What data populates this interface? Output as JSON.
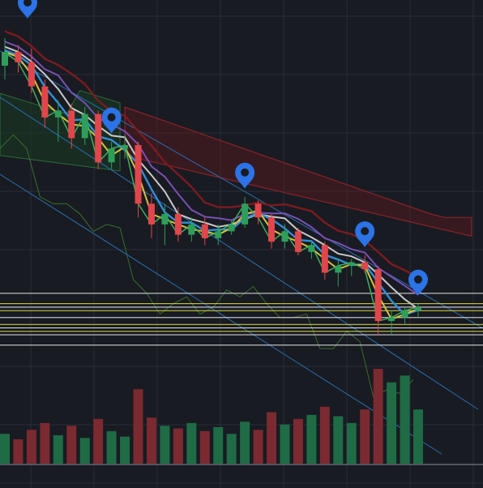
{
  "colors": {
    "background": "#181b22",
    "grid": "#2a2e38",
    "up": "#2e9e5b",
    "down": "#e0464b",
    "volume_up": "#1f6b45",
    "volume_down": "#7a2a30",
    "cloud_bear": "#5a1a1e",
    "cloud_bull": "#1a3a22",
    "ma_purple": "#7a4fb3",
    "ma_white": "#c8c8c8",
    "ma_yellow": "#d9c23a",
    "ma_blue": "#2f8fd8",
    "ma_green": "#3fae5a",
    "ma_darkred": "#7e1a1f",
    "channel": "#2a6fb0",
    "level_white": "#e6e6e6",
    "level_yellow": "#d8d840",
    "marker": "#2b73e6"
  },
  "markers": [
    {
      "name": "location-pin-icon",
      "bar": 0
    },
    {
      "name": "location-pin-icon",
      "bar": 1
    },
    {
      "name": "location-pin-icon",
      "bar": 2
    },
    {
      "name": "location-pin-icon",
      "bar": 3
    },
    {
      "name": "location-pin-icon",
      "bar": 4
    }
  ],
  "chart_data": {
    "type": "candlestick",
    "grid": true,
    "legend": "none",
    "candles": [
      {
        "o": 70,
        "h": 78,
        "l": 66,
        "c": 74
      },
      {
        "o": 74,
        "h": 76,
        "l": 68,
        "c": 71
      },
      {
        "o": 71,
        "h": 75,
        "l": 62,
        "c": 64
      },
      {
        "o": 64,
        "h": 66,
        "l": 52,
        "c": 55
      },
      {
        "o": 55,
        "h": 60,
        "l": 48,
        "c": 57
      },
      {
        "o": 57,
        "h": 59,
        "l": 46,
        "c": 49
      },
      {
        "o": 49,
        "h": 58,
        "l": 47,
        "c": 56
      },
      {
        "o": 56,
        "h": 57,
        "l": 40,
        "c": 42
      },
      {
        "o": 42,
        "h": 48,
        "l": 40,
        "c": 46
      },
      {
        "o": 46,
        "h": 50,
        "l": 43,
        "c": 47
      },
      {
        "o": 47,
        "h": 48,
        "l": 26,
        "c": 30
      },
      {
        "o": 30,
        "h": 33,
        "l": 20,
        "c": 24
      },
      {
        "o": 24,
        "h": 30,
        "l": 18,
        "c": 27
      },
      {
        "o": 27,
        "h": 29,
        "l": 19,
        "c": 21
      },
      {
        "o": 21,
        "h": 26,
        "l": 19,
        "c": 24
      },
      {
        "o": 24,
        "h": 26,
        "l": 18,
        "c": 20
      },
      {
        "o": 20,
        "h": 24,
        "l": 18,
        "c": 22
      },
      {
        "o": 22,
        "h": 25,
        "l": 21,
        "c": 24
      },
      {
        "o": 24,
        "h": 32,
        "l": 23,
        "c": 30
      },
      {
        "o": 30,
        "h": 31,
        "l": 24,
        "c": 26
      },
      {
        "o": 26,
        "h": 27,
        "l": 17,
        "c": 19
      },
      {
        "o": 19,
        "h": 24,
        "l": 17,
        "c": 22
      },
      {
        "o": 22,
        "h": 23,
        "l": 15,
        "c": 16
      },
      {
        "o": 16,
        "h": 19,
        "l": 14,
        "c": 18
      },
      {
        "o": 18,
        "h": 19,
        "l": 8,
        "c": 10
      },
      {
        "o": 10,
        "h": 14,
        "l": 6,
        "c": 12
      },
      {
        "o": 12,
        "h": 14,
        "l": 9,
        "c": 13
      },
      {
        "o": 13,
        "h": 15,
        "l": 10,
        "c": 11
      },
      {
        "o": 11,
        "h": 12,
        "l": -8,
        "c": -4
      },
      {
        "o": -4,
        "h": -1,
        "l": -8,
        "c": -3
      },
      {
        "o": -3,
        "h": 0,
        "l": -5,
        "c": -1
      },
      {
        "o": -1,
        "h": 1,
        "l": -3,
        "c": 0
      }
    ],
    "volume": [
      22,
      18,
      25,
      30,
      21,
      28,
      19,
      33,
      24,
      20,
      55,
      34,
      28,
      26,
      30,
      24,
      27,
      22,
      31,
      25,
      38,
      29,
      33,
      36,
      42,
      35,
      30,
      40,
      70,
      60,
      65,
      40
    ],
    "levels_white": [
      4,
      0,
      -3,
      -6,
      -8,
      -11
    ],
    "levels_yellow": [
      1,
      -1,
      -5,
      -7
    ],
    "y_range": [
      -12,
      82
    ]
  }
}
